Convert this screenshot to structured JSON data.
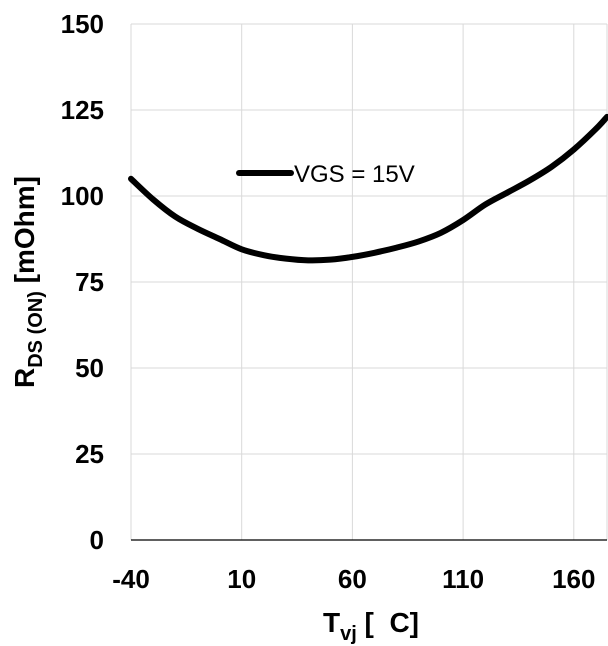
{
  "chart_data": {
    "type": "line",
    "xlim": [
      -40,
      175
    ],
    "ylim": [
      0,
      150
    ],
    "x_ticks": [
      "-40",
      "10",
      "60",
      "110",
      "160"
    ],
    "y_ticks": [
      "0",
      "25",
      "50",
      "75",
      "100",
      "125",
      "150"
    ],
    "xlabel": {
      "main": "T",
      "sub": "vj",
      "rest": " [  C]"
    },
    "ylabel": {
      "main": "R",
      "sub": "DS (ON)",
      "rest": " [mOhm]"
    },
    "grid": true,
    "legend": {
      "position": "top-center",
      "label": "VGS = 15V"
    },
    "series": [
      {
        "name": "VGS = 15V",
        "color": "#000000",
        "x": [
          -40,
          -30,
          -20,
          -10,
          0,
          10,
          20,
          30,
          40,
          50,
          60,
          70,
          80,
          90,
          100,
          110,
          120,
          130,
          140,
          150,
          160,
          170,
          175
        ],
        "y": [
          105,
          99,
          94,
          90.5,
          87.5,
          84.5,
          82.8,
          81.8,
          81.3,
          81.5,
          82.3,
          83.5,
          85,
          86.8,
          89.3,
          93,
          97.5,
          101,
          104.5,
          108.5,
          113.5,
          119.5,
          123
        ]
      }
    ]
  }
}
